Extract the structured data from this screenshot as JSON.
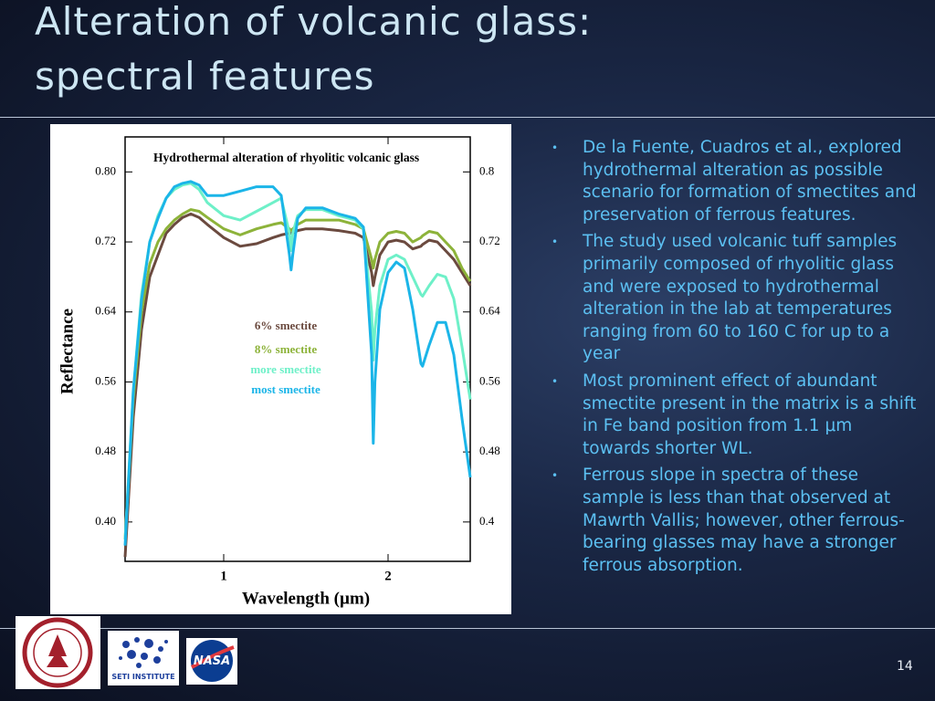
{
  "header": {
    "title": "Alteration of volcanic glass: spectral features"
  },
  "bullets": [
    "De la Fuente, Cuadros et al., explored hydrothermal alteration as possible scenario for formation of smectites and preservation of ferrous features.",
    "The study used volcanic tuff samples primarily composed of rhyolitic glass and were exposed to hydrothermal alteration in the lab at temperatures ranging from 60 to 160 C for up to a year",
    "Most prominent effect of abundant smectite present in the matrix is a shift in Fe band position from 1.1 μm towards shorter WL.",
    "Ferrous slope in spectra of these sample is less than that observed at Mawrth Vallis; however, other ferrous-bearing glasses may have a stronger ferrous absorption."
  ],
  "logos": {
    "seti": "SETI INSTITUTE",
    "nasa": "NASA"
  },
  "slide_number": "14",
  "chart_data": {
    "type": "line",
    "title": "Hydrothermal alteration of rhyolitic volcanic glass",
    "x_label": "Wavelength (µm)",
    "y_label": "Reflectance",
    "x": [
      0.4,
      0.45,
      0.5,
      0.55,
      0.6,
      0.65,
      0.7,
      0.75,
      0.8,
      0.85,
      0.9,
      1.0,
      1.1,
      1.2,
      1.3,
      1.35,
      1.4,
      1.41,
      1.42,
      1.45,
      1.5,
      1.6,
      1.7,
      1.8,
      1.85,
      1.9,
      1.91,
      1.92,
      1.95,
      2.0,
      2.05,
      2.1,
      2.15,
      2.2,
      2.21,
      2.25,
      2.3,
      2.35,
      2.4,
      2.45,
      2.5
    ],
    "series": [
      {
        "name": "6% smectite",
        "color": "#6b4a3f",
        "values": [
          0.36,
          0.52,
          0.62,
          0.68,
          0.705,
          0.73,
          0.74,
          0.748,
          0.752,
          0.748,
          0.74,
          0.725,
          0.715,
          0.718,
          0.725,
          0.728,
          0.73,
          0.73,
          0.73,
          0.733,
          0.735,
          0.735,
          0.733,
          0.73,
          0.725,
          0.685,
          0.67,
          0.68,
          0.705,
          0.72,
          0.722,
          0.72,
          0.712,
          0.715,
          0.717,
          0.722,
          0.72,
          0.71,
          0.7,
          0.685,
          0.67
        ]
      },
      {
        "name": "8% smectite",
        "color": "#8db33a",
        "values": [
          0.38,
          0.54,
          0.64,
          0.695,
          0.72,
          0.735,
          0.745,
          0.752,
          0.757,
          0.755,
          0.748,
          0.735,
          0.728,
          0.735,
          0.74,
          0.742,
          0.735,
          0.733,
          0.735,
          0.74,
          0.745,
          0.745,
          0.745,
          0.74,
          0.735,
          0.7,
          0.69,
          0.7,
          0.72,
          0.73,
          0.732,
          0.73,
          0.72,
          0.725,
          0.727,
          0.732,
          0.73,
          0.72,
          0.71,
          0.69,
          0.675
        ]
      },
      {
        "name": "more smectite",
        "color": "#6ef0c8",
        "values": [
          0.38,
          0.55,
          0.66,
          0.72,
          0.75,
          0.77,
          0.78,
          0.785,
          0.787,
          0.78,
          0.765,
          0.75,
          0.745,
          0.755,
          0.765,
          0.77,
          0.73,
          0.71,
          0.73,
          0.75,
          0.757,
          0.757,
          0.75,
          0.745,
          0.735,
          0.64,
          0.585,
          0.62,
          0.67,
          0.7,
          0.705,
          0.7,
          0.68,
          0.66,
          0.658,
          0.67,
          0.683,
          0.68,
          0.655,
          0.6,
          0.54
        ]
      },
      {
        "name": "most smectite",
        "color": "#1bb5e8",
        "values": [
          0.373,
          0.55,
          0.654,
          0.72,
          0.747,
          0.77,
          0.783,
          0.787,
          0.789,
          0.785,
          0.773,
          0.773,
          0.778,
          0.783,
          0.783,
          0.773,
          0.705,
          0.688,
          0.705,
          0.747,
          0.759,
          0.759,
          0.752,
          0.747,
          0.737,
          0.591,
          0.49,
          0.56,
          0.643,
          0.685,
          0.697,
          0.69,
          0.643,
          0.581,
          0.578,
          0.602,
          0.628,
          0.628,
          0.591,
          0.518,
          0.451
        ]
      }
    ],
    "xlim": [
      0.4,
      2.5
    ],
    "xticks": [
      1,
      2
    ],
    "ylim": [
      0.355,
      0.84
    ],
    "yticks": [
      {
        "value": 0.8,
        "label": "0.80"
      },
      0.72,
      0.64,
      0.56,
      0.48,
      {
        "value": 0.4,
        "label": "0.40"
      }
    ],
    "y2lim": [
      0.355,
      0.84
    ],
    "y2ticks": [
      0.8,
      0.72,
      0.64,
      0.56,
      0.48,
      0.4
    ]
  }
}
